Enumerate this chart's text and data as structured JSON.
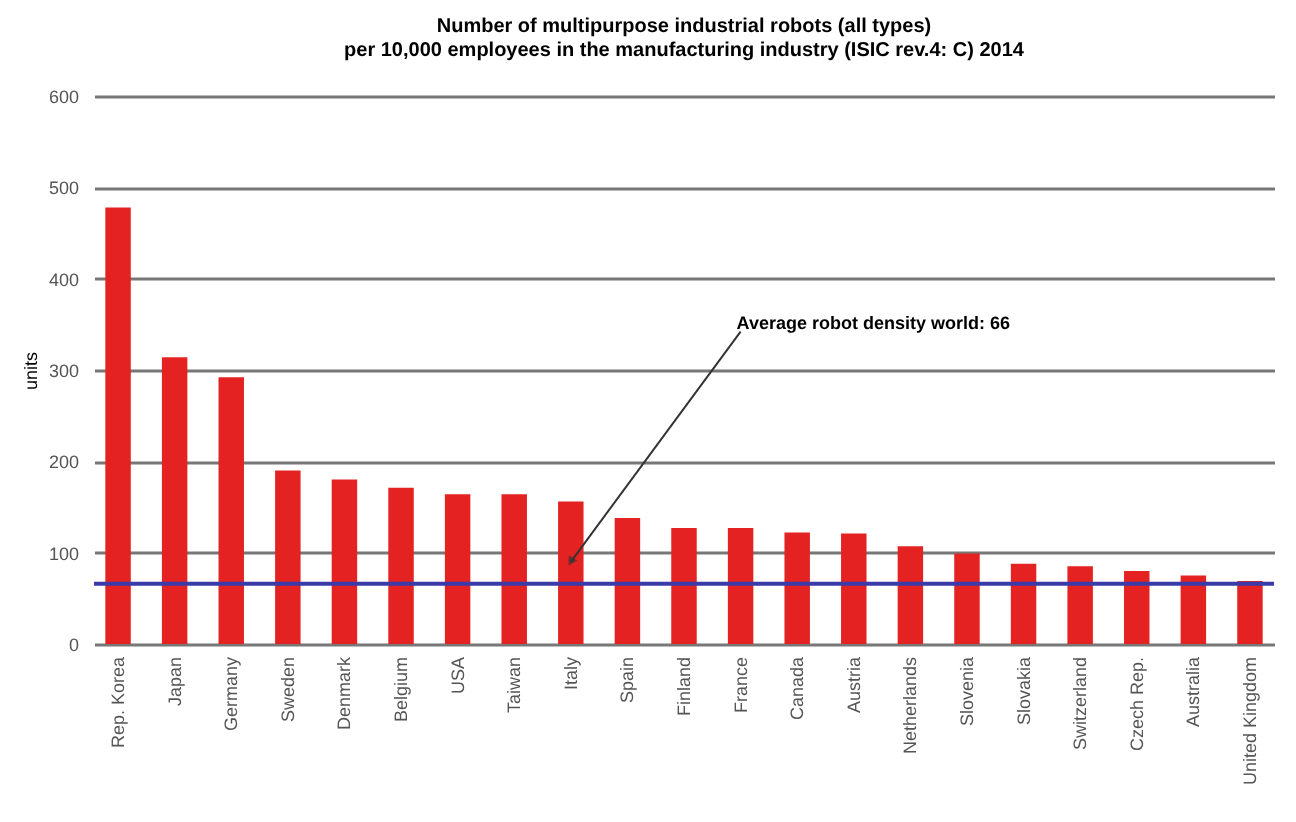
{
  "chart_data": {
    "type": "bar",
    "title": "Number of multipurpose industrial robots (all types)",
    "subtitle": "per 10,000 employees in the manufacturing industry (ISIC rev.4: C) 2014",
    "ylabel": "units",
    "categories": [
      "Rep. Korea",
      "Japan",
      "Germany",
      "Sweden",
      "Denmark",
      "Belgium",
      "USA",
      "Taiwan",
      "Italy",
      "Spain",
      "Finland",
      "France",
      "Canada",
      "Austria",
      "Netherlands",
      "Slovenia",
      "Slovakia",
      "Switzerland",
      "Czech Rep.",
      "Australia",
      "United Kingdom"
    ],
    "values": [
      478,
      314,
      292,
      190,
      180,
      171,
      164,
      164,
      156,
      138,
      127,
      127,
      122,
      121,
      107,
      99,
      88,
      85,
      80,
      75,
      69
    ],
    "color": "#e52222",
    "ylim": [
      0,
      600
    ],
    "yticks": [
      0,
      100,
      200,
      300,
      400,
      500,
      600
    ],
    "grid": "y",
    "ref_lines": [
      {
        "axis": "y",
        "value": 66,
        "color": "#3a3aa8"
      }
    ],
    "annotations": [
      "Average robot density world: 66"
    ]
  }
}
